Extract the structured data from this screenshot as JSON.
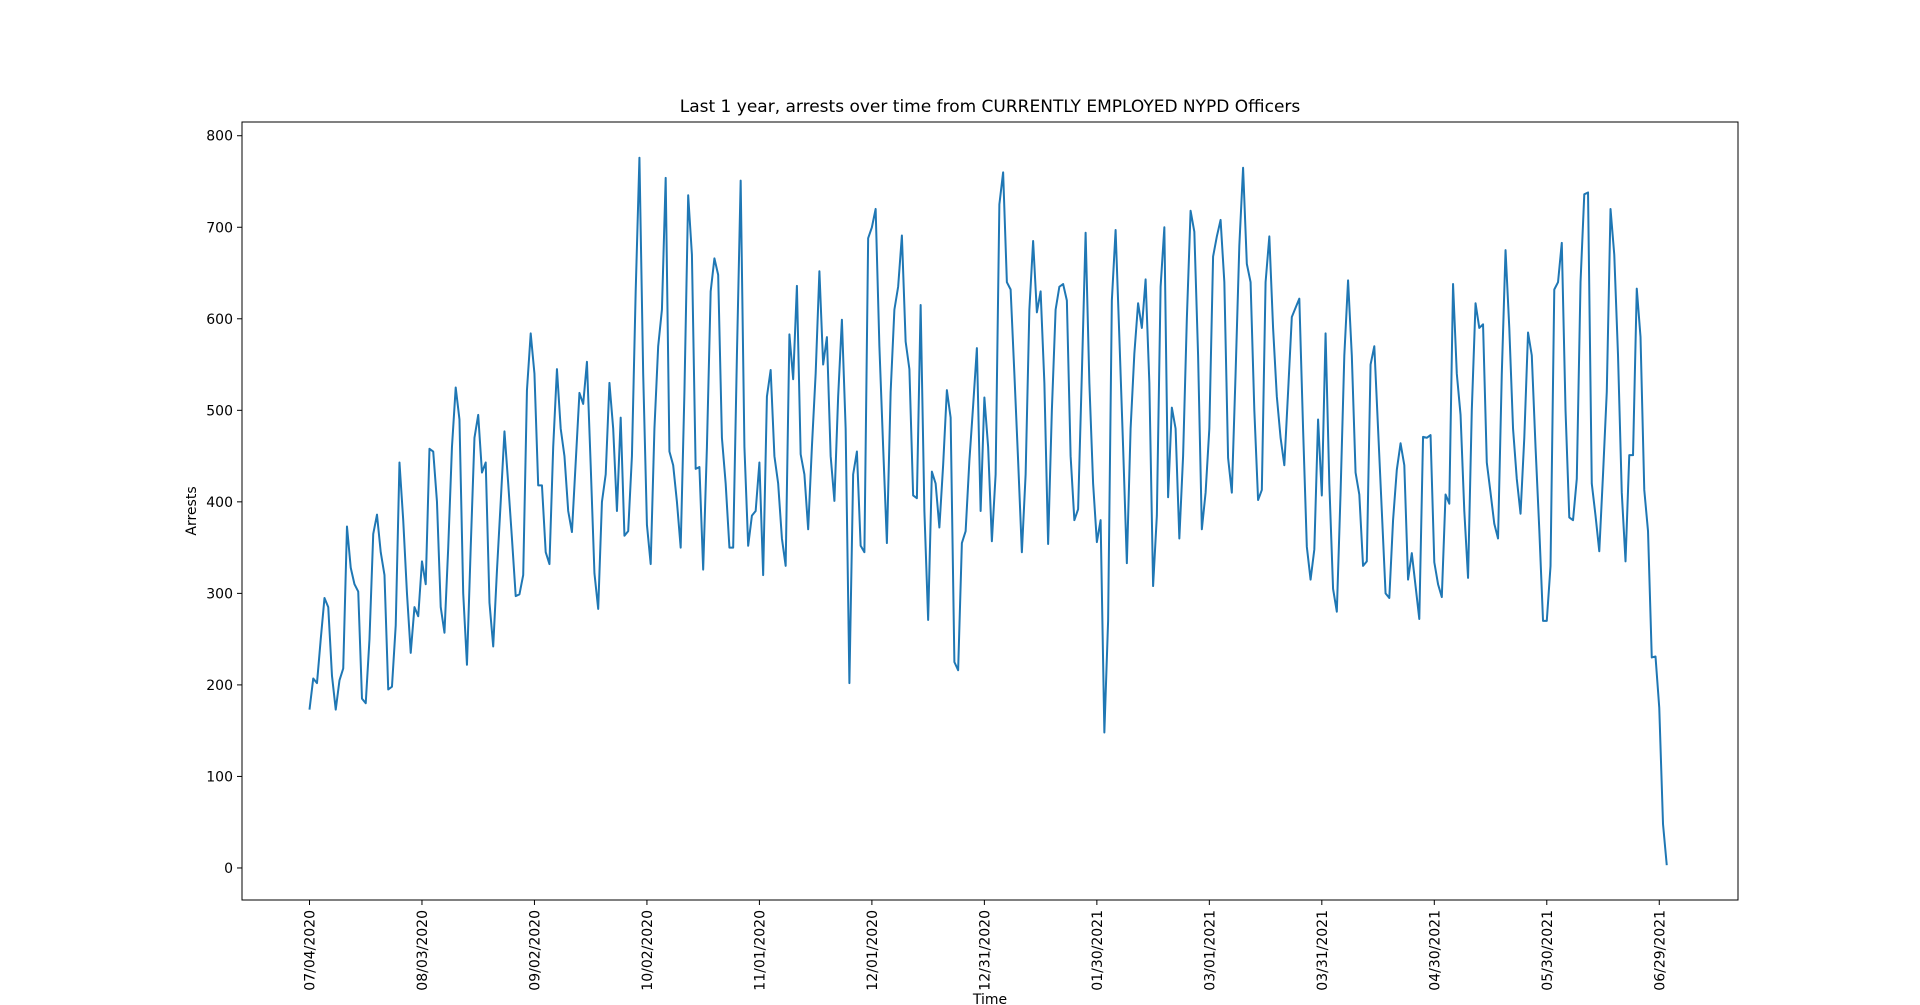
{
  "chart_data": {
    "type": "line",
    "title": "Last 1 year, arrests over time from CURRENTLY EMPLOYED NYPD Officers",
    "xlabel": "Time",
    "ylabel": "Arrests",
    "ylim": [
      -35,
      815
    ],
    "xlim": [
      "2020-06-16",
      "2021-07-20"
    ],
    "grid": false,
    "y_ticks": [
      0,
      100,
      200,
      300,
      400,
      500,
      600,
      700,
      800
    ],
    "x_ticks": [
      {
        "date": "2020-07-04",
        "label": "07/04/2020"
      },
      {
        "date": "2020-08-03",
        "label": "08/03/2020"
      },
      {
        "date": "2020-09-02",
        "label": "09/02/2020"
      },
      {
        "date": "2020-10-02",
        "label": "10/02/2020"
      },
      {
        "date": "2020-11-01",
        "label": "11/01/2020"
      },
      {
        "date": "2020-12-01",
        "label": "12/01/2020"
      },
      {
        "date": "2020-12-31",
        "label": "12/31/2020"
      },
      {
        "date": "2021-01-30",
        "label": "01/30/2021"
      },
      {
        "date": "2021-03-01",
        "label": "03/01/2021"
      },
      {
        "date": "2021-03-31",
        "label": "03/31/2021"
      },
      {
        "date": "2021-04-30",
        "label": "04/30/2021"
      },
      {
        "date": "2021-05-30",
        "label": "05/30/2021"
      },
      {
        "date": "2021-06-29",
        "label": "06/29/2021"
      }
    ],
    "series": [
      {
        "color": "#1f77b4",
        "start_date": "2020-07-04",
        "values": [
          173,
          207,
          202,
          250,
          295,
          285,
          210,
          173,
          205,
          218,
          373,
          328,
          310,
          302,
          185,
          180,
          250,
          365,
          386,
          345,
          320,
          195,
          198,
          265,
          443,
          380,
          300,
          235,
          285,
          275,
          335,
          310,
          458,
          455,
          400,
          285,
          257,
          350,
          460,
          525,
          490,
          300,
          222,
          350,
          470,
          495,
          432,
          443,
          290,
          242,
          325,
          400,
          477,
          420,
          360,
          297,
          299,
          320,
          522,
          584,
          540,
          418,
          418,
          345,
          332,
          460,
          545,
          480,
          450,
          390,
          367,
          443,
          519,
          507,
          553,
          440,
          322,
          283,
          400,
          430,
          530,
          480,
          390,
          492,
          363,
          368,
          450,
          630,
          776,
          540,
          375,
          332,
          480,
          570,
          610,
          754,
          455,
          440,
          400,
          350,
          520,
          735,
          670,
          436,
          438,
          326,
          460,
          630,
          666,
          648,
          470,
          420,
          350,
          350,
          560,
          751,
          460,
          352,
          385,
          390,
          443,
          320,
          515,
          544,
          450,
          420,
          360,
          330,
          583,
          534,
          636,
          452,
          430,
          370,
          460,
          540,
          652,
          550,
          580,
          450,
          401,
          515,
          599,
          480,
          202,
          430,
          455,
          352,
          345,
          688,
          700,
          720,
          570,
          460,
          355,
          520,
          610,
          635,
          691,
          575,
          545,
          407,
          404,
          615,
          390,
          271,
          433,
          420,
          372,
          440,
          522,
          492,
          225,
          216,
          355,
          368,
          445,
          505,
          568,
          390,
          514,
          460,
          357,
          430,
          725,
          760,
          640,
          632,
          540,
          445,
          345,
          430,
          610,
          685,
          607,
          630,
          530,
          354,
          500,
          610,
          635,
          638,
          620,
          450,
          380,
          392,
          540,
          694,
          530,
          420,
          356,
          380,
          148,
          270,
          620,
          697,
          580,
          460,
          333,
          480,
          562,
          617,
          590,
          643,
          530,
          308,
          385,
          635,
          700,
          405,
          503,
          480,
          360,
          450,
          600,
          718,
          695,
          560,
          370,
          410,
          480,
          668,
          690,
          708,
          640,
          448,
          410,
          540,
          680,
          765,
          660,
          640,
          500,
          402,
          413,
          640,
          690,
          590,
          515,
          470,
          440,
          520,
          602,
          612,
          622,
          480,
          351,
          315,
          348,
          490,
          407,
          584,
          420,
          305,
          280,
          410,
          560,
          642,
          560,
          432,
          408,
          330,
          335,
          550,
          570,
          480,
          390,
          300,
          295,
          380,
          435,
          464,
          440,
          315,
          344,
          308,
          272,
          471,
          470,
          473,
          334,
          310,
          296,
          408,
          398,
          638,
          540,
          495,
          390,
          317,
          500,
          617,
          590,
          594,
          443,
          410,
          376,
          360,
          540,
          675,
          590,
          480,
          425,
          387,
          470,
          585,
          560,
          460,
          370,
          270,
          270,
          330,
          632,
          640,
          683,
          500,
          383,
          380,
          425,
          640,
          736,
          738,
          420,
          385,
          346,
          430,
          520,
          720,
          670,
          560,
          410,
          335,
          451,
          451,
          633,
          580,
          413,
          368,
          230,
          231,
          175,
          48,
          3
        ]
      }
    ]
  }
}
